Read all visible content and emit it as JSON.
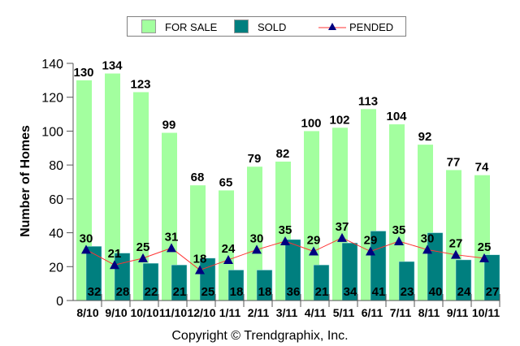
{
  "chart_data": {
    "type": "bar",
    "title": "",
    "xlabel": "",
    "ylabel": "Number of Homes",
    "ylim": [
      0,
      140
    ],
    "yticks": [
      0,
      20,
      40,
      60,
      80,
      100,
      120,
      140
    ],
    "grid": false,
    "legend_position": "top-center",
    "categories": [
      "8/10",
      "9/10",
      "10/10",
      "11/10",
      "12/10",
      "1/11",
      "2/11",
      "3/11",
      "4/11",
      "5/11",
      "6/11",
      "7/11",
      "8/11",
      "9/11",
      "10/11"
    ],
    "series": [
      {
        "name": "FOR SALE",
        "type": "bar",
        "color": "#a3ff9f",
        "values": [
          130,
          134,
          123,
          99,
          68,
          65,
          79,
          82,
          100,
          102,
          113,
          104,
          92,
          77,
          74
        ]
      },
      {
        "name": "SOLD",
        "type": "bar",
        "color": "#007f7f",
        "values": [
          32,
          28,
          22,
          21,
          25,
          18,
          18,
          36,
          21,
          34,
          41,
          23,
          40,
          24,
          27
        ]
      },
      {
        "name": "PENDED",
        "type": "line",
        "color": "#ff3333",
        "marker_color": "#000080",
        "values": [
          30,
          21,
          25,
          31,
          18,
          24,
          30,
          35,
          29,
          37,
          29,
          35,
          30,
          27,
          25
        ]
      }
    ],
    "footer": "Copyright © Trendgraphix, Inc."
  }
}
